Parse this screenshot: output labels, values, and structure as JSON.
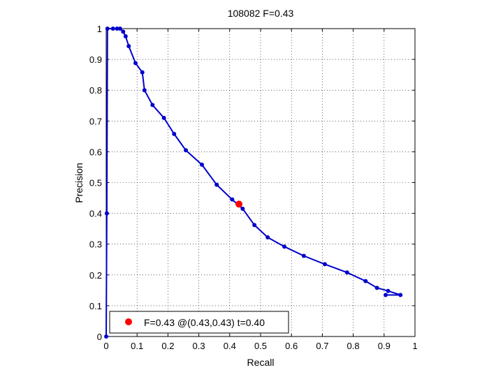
{
  "chart_data": {
    "type": "line",
    "title": "108082 F=0.43",
    "xlabel": "Recall",
    "ylabel": "Precision",
    "xlim": [
      0,
      1
    ],
    "ylim": [
      0,
      1
    ],
    "grid": true,
    "xticks": [
      "0",
      "0.1",
      "0.2",
      "0.3",
      "0.4",
      "0.5",
      "0.6",
      "0.7",
      "0.8",
      "0.9",
      "1"
    ],
    "yticks": [
      "0",
      "0.1",
      "0.2",
      "0.3",
      "0.4",
      "0.5",
      "0.6",
      "0.7",
      "0.8",
      "0.9",
      "1"
    ],
    "series": [
      {
        "color": "#0000cc",
        "points": [
          [
            0.0,
            0.0
          ],
          [
            0.002,
            0.4
          ],
          [
            0.004,
            1.0
          ],
          [
            0.022,
            1.0
          ],
          [
            0.035,
            1.0
          ],
          [
            0.045,
            1.0
          ],
          [
            0.055,
            0.99
          ],
          [
            0.063,
            0.975
          ],
          [
            0.073,
            0.943
          ],
          [
            0.095,
            0.888
          ],
          [
            0.117,
            0.858
          ],
          [
            0.124,
            0.8
          ],
          [
            0.15,
            0.752
          ],
          [
            0.187,
            0.71
          ],
          [
            0.22,
            0.658
          ],
          [
            0.258,
            0.605
          ],
          [
            0.31,
            0.558
          ],
          [
            0.358,
            0.493
          ],
          [
            0.408,
            0.445
          ],
          [
            0.442,
            0.415
          ],
          [
            0.48,
            0.362
          ],
          [
            0.523,
            0.322
          ],
          [
            0.577,
            0.292
          ],
          [
            0.64,
            0.262
          ],
          [
            0.708,
            0.235
          ],
          [
            0.78,
            0.208
          ],
          [
            0.84,
            0.18
          ],
          [
            0.877,
            0.158
          ],
          [
            0.913,
            0.148
          ],
          [
            0.953,
            0.135
          ],
          [
            0.905,
            0.135
          ]
        ]
      }
    ],
    "highlight": {
      "x": 0.43,
      "y": 0.43,
      "color": "#ff0000"
    },
    "legend": {
      "position": "bottom-left",
      "label": "F=0.43 @(0.43,0.43) t=0.40"
    }
  }
}
